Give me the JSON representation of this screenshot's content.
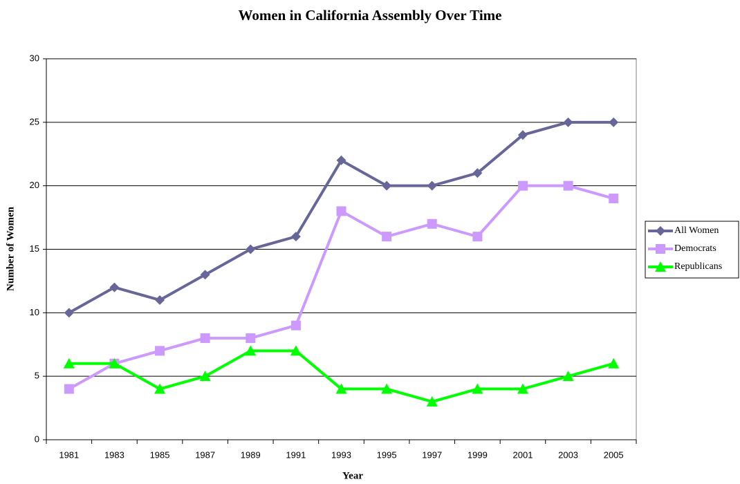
{
  "chart_data": {
    "type": "line",
    "title": "Women in California Assembly Over Time",
    "x_label": "Year",
    "y_label": "Number of Women",
    "categories": [
      1981,
      1983,
      1985,
      1987,
      1989,
      1991,
      1993,
      1995,
      1997,
      1999,
      2001,
      2003,
      2005
    ],
    "series": [
      {
        "name": "All Women",
        "color": "#666699",
        "marker": "diamond",
        "values": [
          10,
          12,
          11,
          13,
          15,
          16,
          22,
          20,
          20,
          21,
          24,
          25,
          25
        ]
      },
      {
        "name": "Democrats",
        "color": "#cc99ff",
        "marker": "square",
        "values": [
          4,
          6,
          7,
          8,
          8,
          9,
          18,
          16,
          17,
          16,
          20,
          20,
          19
        ]
      },
      {
        "name": "Republicans",
        "color": "#00ff00",
        "marker": "triangle",
        "values": [
          6,
          6,
          4,
          5,
          7,
          7,
          4,
          4,
          3,
          4,
          4,
          5,
          6
        ]
      }
    ],
    "ylim": [
      0,
      30
    ],
    "yticks": [
      0,
      5,
      10,
      15,
      20,
      25,
      30
    ],
    "grid": true,
    "legend": "right"
  }
}
